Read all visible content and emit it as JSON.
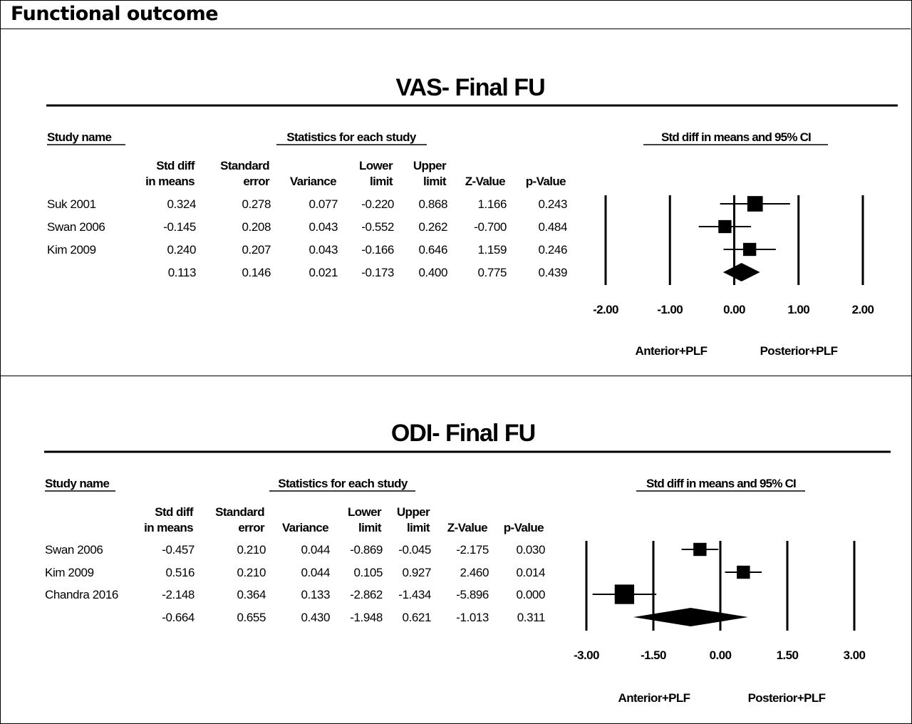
{
  "page": {
    "title": "Functional outcome"
  },
  "columns": {
    "study_name": "Study name",
    "stats_header": "Statistics for each study",
    "plot_header": "Std diff in means and 95% CI",
    "std_diff": [
      "Std diff",
      "in means"
    ],
    "std_err": [
      "Standard",
      "error"
    ],
    "variance": "Variance",
    "lower": [
      "Lower",
      "limit"
    ],
    "upper": [
      "Upper",
      "limit"
    ],
    "z": "Z-Value",
    "p": "p-Value"
  },
  "chart_data": [
    {
      "type": "table",
      "title": "VAS- Final FU",
      "xlim": [
        -2,
        2
      ],
      "ticks": [
        "-2.00",
        "-1.00",
        "0.00",
        "1.00",
        "2.00"
      ],
      "tick_values": [
        -2,
        -1,
        0,
        1,
        2
      ],
      "favours_left": "Anterior+PLF",
      "favours_right": "Posterior+PLF",
      "studies": [
        {
          "name": "Suk 2001",
          "std_diff": "0.324",
          "se": "0.278",
          "variance": "0.077",
          "lower": "-0.220",
          "upper": "0.868",
          "z": "1.166",
          "p": "0.243"
        },
        {
          "name": "Swan 2006",
          "std_diff": "-0.145",
          "se": "0.208",
          "variance": "0.043",
          "lower": "-0.552",
          "upper": "0.262",
          "z": "-0.700",
          "p": "0.484"
        },
        {
          "name": "Kim 2009",
          "std_diff": "0.240",
          "se": "0.207",
          "variance": "0.043",
          "lower": "-0.166",
          "upper": "0.646",
          "z": "1.159",
          "p": "0.246"
        }
      ],
      "pooled": {
        "name": "",
        "std_diff": "0.113",
        "se": "0.146",
        "variance": "0.021",
        "lower": "-0.173",
        "upper": "0.400",
        "z": "0.775",
        "p": "0.439"
      }
    },
    {
      "type": "table",
      "title": "ODI- Final FU",
      "xlim": [
        -3,
        3
      ],
      "ticks": [
        "-3.00",
        "-1.50",
        "0.00",
        "1.50",
        "3.00"
      ],
      "tick_values": [
        -3,
        -1.5,
        0,
        1.5,
        3
      ],
      "favours_left": "Anterior+PLF",
      "favours_right": "Posterior+PLF",
      "studies": [
        {
          "name": "Swan 2006",
          "std_diff": "-0.457",
          "se": "0.210",
          "variance": "0.044",
          "lower": "-0.869",
          "upper": "-0.045",
          "z": "-2.175",
          "p": "0.030"
        },
        {
          "name": "Kim 2009",
          "std_diff": "0.516",
          "se": "0.210",
          "variance": "0.044",
          "lower": "0.105",
          "upper": "0.927",
          "z": "2.460",
          "p": "0.014"
        },
        {
          "name": "Chandra 2016",
          "std_diff": "-2.148",
          "se": "0.364",
          "variance": "0.133",
          "lower": "-2.862",
          "upper": "-1.434",
          "z": "-5.896",
          "p": "0.000"
        }
      ],
      "pooled": {
        "name": "",
        "std_diff": "-0.664",
        "se": "0.655",
        "variance": "0.430",
        "lower": "-1.948",
        "upper": "0.621",
        "z": "-1.013",
        "p": "0.311"
      }
    }
  ]
}
